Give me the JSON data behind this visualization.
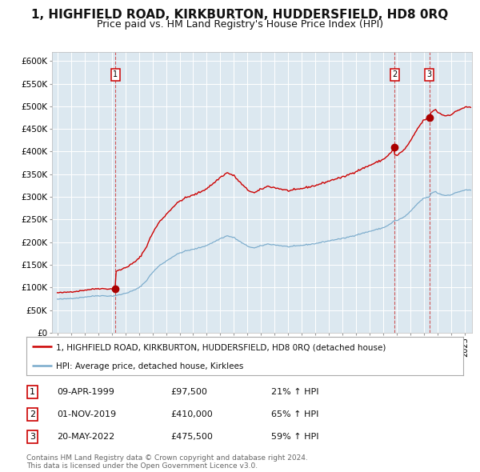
{
  "title": "1, HIGHFIELD ROAD, KIRKBURTON, HUDDERSFIELD, HD8 0RQ",
  "subtitle": "Price paid vs. HM Land Registry's House Price Index (HPI)",
  "legend_line1": "1, HIGHFIELD ROAD, KIRKBURTON, HUDDERSFIELD, HD8 0RQ (detached house)",
  "legend_line2": "HPI: Average price, detached house, Kirklees",
  "transactions": [
    {
      "num": 1,
      "date": "09-APR-1999",
      "price": "£97,500",
      "year": 1999.27,
      "price_val": 97500,
      "hpi_pct": "21% ↑ HPI"
    },
    {
      "num": 2,
      "date": "01-NOV-2019",
      "price": "£410,000",
      "year": 2019.83,
      "price_val": 410000,
      "hpi_pct": "65% ↑ HPI"
    },
    {
      "num": 3,
      "date": "20-MAY-2022",
      "price": "£475,500",
      "year": 2022.38,
      "price_val": 475500,
      "hpi_pct": "59% ↑ HPI"
    }
  ],
  "ylim": [
    0,
    620000
  ],
  "yticks": [
    0,
    50000,
    100000,
    150000,
    200000,
    250000,
    300000,
    350000,
    400000,
    450000,
    500000,
    550000,
    600000
  ],
  "xlim_start": 1994.6,
  "xlim_end": 2025.5,
  "bg_color": "#dce8f0",
  "fig_bg": "#ffffff",
  "red_line_color": "#cc0000",
  "blue_line_color": "#7aabcc",
  "grid_color": "#ffffff",
  "vline_color": "#cc3333",
  "marker_color": "#aa0000",
  "box_edge_color": "#cc0000",
  "legend_border": "#aaaaaa",
  "footer": "Contains HM Land Registry data © Crown copyright and database right 2024.\nThis data is licensed under the Open Government Licence v3.0.",
  "footer_color": "#666666",
  "title_fontsize": 11,
  "subtitle_fontsize": 9,
  "axis_tick_fontsize": 7.5,
  "legend_fontsize": 7.5,
  "table_fontsize": 8.0,
  "footer_fontsize": 6.5
}
